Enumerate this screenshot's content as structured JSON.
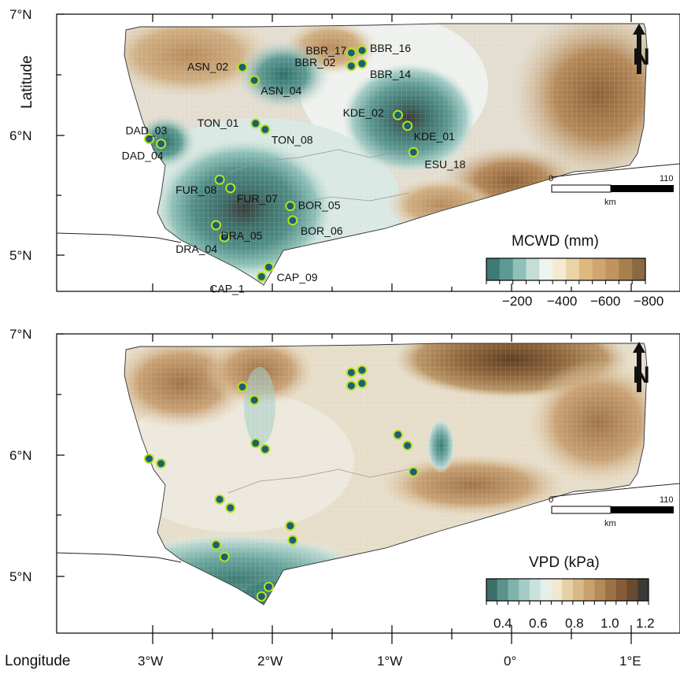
{
  "axis_labels": {
    "y": "Latitude",
    "x": "Longitude"
  },
  "lat_ticks": [
    "7°N",
    "6°N",
    "5°N"
  ],
  "lon_ticks": [
    "3°W",
    "2°W",
    "1°W",
    "0°",
    "1°E"
  ],
  "north_label": "N",
  "scalebar": {
    "start": "0",
    "end": "110",
    "unit": "km"
  },
  "colors": {
    "site_fill": "#1f5f73",
    "site_ring": "#b6e31e",
    "brown_dark": "#7d5226",
    "teal_dark": "#2f6d64"
  },
  "panels": [
    {
      "variable": "MCWD (mm)",
      "colorbar_ticks": [
        "−200",
        "−400",
        "−600",
        "−800"
      ],
      "colorbar_colors": [
        "#3f7b74",
        "#5d9a92",
        "#8fc1b9",
        "#c4ded7",
        "#eef4f0",
        "#f4ead2",
        "#ead3a5",
        "#ddb980",
        "#d1a56f",
        "#c29261",
        "#a8804f",
        "#8a6a45"
      ]
    },
    {
      "variable": "VPD (kPa)",
      "colorbar_ticks": [
        "0.4",
        "0.6",
        "0.8",
        "1.0",
        "1.2"
      ],
      "colorbar_colors": [
        "#3c6f69",
        "#5a938c",
        "#7fb3ab",
        "#a4ccc5",
        "#c8e1dc",
        "#e8efe9",
        "#f1e8d2",
        "#e6d1a7",
        "#d8b987",
        "#c9a16c",
        "#b58a56",
        "#9c7145",
        "#845c38",
        "#6a4a2e",
        "#3d3a35"
      ]
    }
  ],
  "sites": [
    {
      "name": "ASN_02",
      "lon": -2.25,
      "lat": 6.57
    },
    {
      "name": "ASN_04",
      "lon": -2.15,
      "lat": 6.46
    },
    {
      "name": "BBR_17",
      "lon": -1.34,
      "lat": 6.69
    },
    {
      "name": "BBR_16",
      "lon": -1.25,
      "lat": 6.71
    },
    {
      "name": "BBR_02",
      "lon": -1.34,
      "lat": 6.58
    },
    {
      "name": "BBR_14",
      "lon": -1.25,
      "lat": 6.6
    },
    {
      "name": "KDE_02",
      "lon": -0.95,
      "lat": 6.17
    },
    {
      "name": "KDE_01",
      "lon": -0.87,
      "lat": 6.08
    },
    {
      "name": "ESU_18",
      "lon": -0.82,
      "lat": 5.86
    },
    {
      "name": "TON_01",
      "lon": -2.14,
      "lat": 6.1
    },
    {
      "name": "TON_08",
      "lon": -2.06,
      "lat": 6.05
    },
    {
      "name": "DAD_03",
      "lon": -3.03,
      "lat": 5.97
    },
    {
      "name": "DAD_04",
      "lon": -2.93,
      "lat": 5.93
    },
    {
      "name": "FUR_08",
      "lon": -2.44,
      "lat": 5.63
    },
    {
      "name": "FUR_07",
      "lon": -2.35,
      "lat": 5.56
    },
    {
      "name": "BOR_05",
      "lon": -1.85,
      "lat": 5.41
    },
    {
      "name": "BOR_06",
      "lon": -1.83,
      "lat": 5.29
    },
    {
      "name": "DRA_05",
      "lon": -2.47,
      "lat": 5.25
    },
    {
      "name": "DRA_04",
      "lon": -2.4,
      "lat": 5.15
    },
    {
      "name": "CAP_09",
      "lon": -2.03,
      "lat": 4.9
    },
    {
      "name": "CAP_1",
      "lon": -2.09,
      "lat": 4.82
    }
  ]
}
